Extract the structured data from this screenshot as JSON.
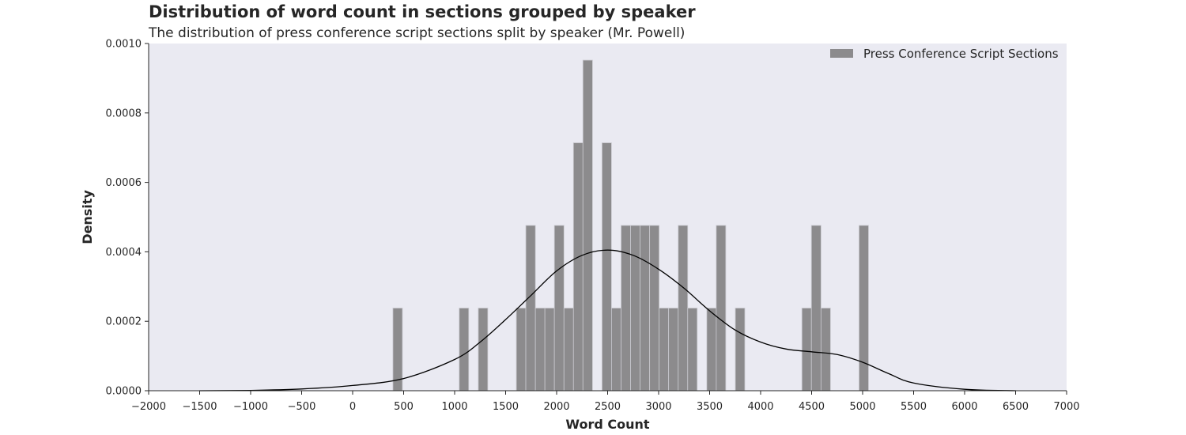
{
  "chart_data": {
    "type": "bar",
    "title": "Distribution of word count in sections grouped by speaker",
    "subtitle": "The distribution of press conference script sections split by speaker (Mr. Powell)",
    "xlabel": "Word Count",
    "ylabel": "Density",
    "xlim": [
      -2000,
      7000
    ],
    "ylim": [
      0,
      0.001
    ],
    "xticks": [
      -2000,
      -1500,
      -1000,
      -500,
      0,
      500,
      1000,
      1500,
      2000,
      2500,
      3000,
      3500,
      4000,
      4500,
      5000,
      5500,
      6000,
      6500,
      7000
    ],
    "xtick_labels": [
      "−2000",
      "−1500",
      "−1000",
      "−500",
      "0",
      "500",
      "1000",
      "1500",
      "2000",
      "2500",
      "3000",
      "3500",
      "4000",
      "4500",
      "5000",
      "5500",
      "6000",
      "6500",
      "7000"
    ],
    "yticks": [
      0,
      0.0002,
      0.0004,
      0.0006,
      0.0008,
      0.001
    ],
    "ytick_labels": [
      "0.0000",
      "0.0002",
      "0.0004",
      "0.0006",
      "0.0008",
      "0.0010"
    ],
    "grid": false,
    "legend": {
      "placement": "top-right",
      "entries": [
        "Press Conference Script Sections"
      ]
    },
    "colors": {
      "bar": "#8c8b8d",
      "bar_edge": "#c9c9cf",
      "plot_bg": "#eaeaf2",
      "kde": "#000000"
    },
    "bins": [
      {
        "x0": 395,
        "x1": 488,
        "density": 0.000238
      },
      {
        "x0": 1045,
        "x1": 1138,
        "density": 0.000238
      },
      {
        "x0": 1232,
        "x1": 1325,
        "density": 0.000238
      },
      {
        "x0": 1605,
        "x1": 1698,
        "density": 0.000238
      },
      {
        "x0": 1698,
        "x1": 1792,
        "density": 0.000476
      },
      {
        "x0": 1792,
        "x1": 1885,
        "density": 0.000238
      },
      {
        "x0": 1885,
        "x1": 1978,
        "density": 0.000238
      },
      {
        "x0": 1978,
        "x1": 2072,
        "density": 0.000476
      },
      {
        "x0": 2072,
        "x1": 2165,
        "density": 0.000238
      },
      {
        "x0": 2165,
        "x1": 2258,
        "density": 0.000714
      },
      {
        "x0": 2258,
        "x1": 2352,
        "density": 0.000952
      },
      {
        "x0": 2445,
        "x1": 2538,
        "density": 0.000714
      },
      {
        "x0": 2538,
        "x1": 2632,
        "density": 0.000238
      },
      {
        "x0": 2632,
        "x1": 2725,
        "density": 0.000476
      },
      {
        "x0": 2725,
        "x1": 2818,
        "density": 0.000476
      },
      {
        "x0": 2818,
        "x1": 2912,
        "density": 0.000476
      },
      {
        "x0": 2912,
        "x1": 3005,
        "density": 0.000476
      },
      {
        "x0": 3005,
        "x1": 3098,
        "density": 0.000238
      },
      {
        "x0": 3098,
        "x1": 3192,
        "density": 0.000238
      },
      {
        "x0": 3192,
        "x1": 3285,
        "density": 0.000476
      },
      {
        "x0": 3285,
        "x1": 3378,
        "density": 0.000238
      },
      {
        "x0": 3472,
        "x1": 3565,
        "density": 0.000238
      },
      {
        "x0": 3565,
        "x1": 3658,
        "density": 0.000476
      },
      {
        "x0": 3752,
        "x1": 3845,
        "density": 0.000238
      },
      {
        "x0": 4405,
        "x1": 4498,
        "density": 0.000238
      },
      {
        "x0": 4498,
        "x1": 4592,
        "density": 0.000476
      },
      {
        "x0": 4592,
        "x1": 4685,
        "density": 0.000238
      },
      {
        "x0": 4965,
        "x1": 5058,
        "density": 0.000476
      }
    ],
    "kde": {
      "x": [
        -1500,
        -1000,
        -500,
        0,
        500,
        1000,
        1250,
        1500,
        1750,
        2000,
        2250,
        2500,
        2750,
        3000,
        3250,
        3500,
        3750,
        4000,
        4250,
        4500,
        4750,
        5000,
        5250,
        5500,
        6000,
        6500
      ],
      "y": [
        0.0,
        1e-06,
        5e-06,
        1.5e-05,
        3.5e-05,
        9e-05,
        0.00014,
        0.000205,
        0.000275,
        0.000345,
        0.00039,
        0.000405,
        0.00039,
        0.00035,
        0.000295,
        0.00023,
        0.000175,
        0.00014,
        0.00012,
        0.000112,
        0.000104,
        8.2e-05,
        5e-05,
        2.2e-05,
        4e-06,
        0.0
      ]
    }
  }
}
